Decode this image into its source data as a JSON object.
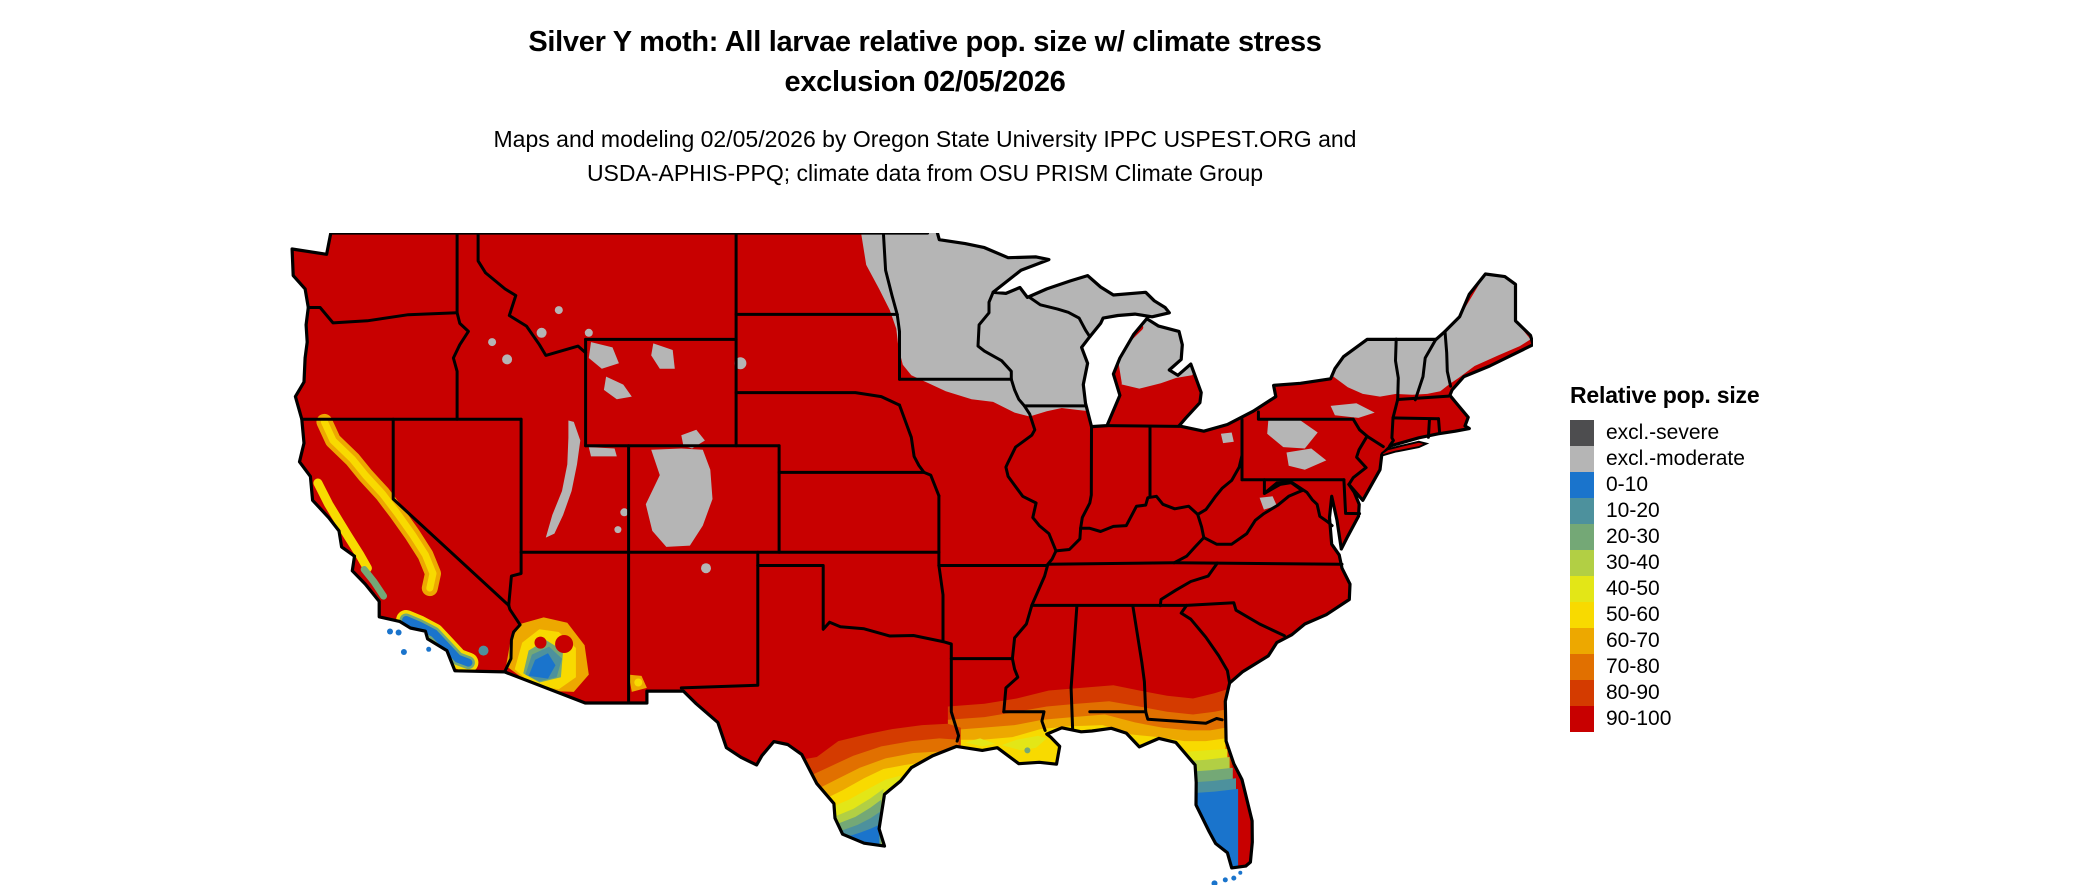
{
  "title": {
    "line1": "Silver Y moth: All larvae relative pop. size w/ climate stress",
    "line2": "exclusion 02/05/2026"
  },
  "subtitle": {
    "line1": "Maps and modeling 02/05/2026 by Oregon State University IPPC USPEST.ORG and",
    "line2": "USDA-APHIS-PPQ; climate data from OSU PRISM Climate Group"
  },
  "legend": {
    "title": "Relative pop. size",
    "items": [
      {
        "label": "excl.-severe",
        "color": "#4d4d4f"
      },
      {
        "label": "excl.-moderate",
        "color": "#b5b5b5"
      },
      {
        "label": "0-10",
        "color": "#1a74cc"
      },
      {
        "label": "10-20",
        "color": "#4d919d"
      },
      {
        "label": "20-30",
        "color": "#74a876"
      },
      {
        "label": "30-40",
        "color": "#b2cf44"
      },
      {
        "label": "40-50",
        "color": "#e3e617"
      },
      {
        "label": "50-60",
        "color": "#f8da00"
      },
      {
        "label": "60-70",
        "color": "#eda800"
      },
      {
        "label": "70-80",
        "color": "#e17000"
      },
      {
        "label": "80-90",
        "color": "#d43b00"
      },
      {
        "label": "90-100",
        "color": "#c80000"
      }
    ]
  },
  "map": {
    "border_color": "#000000",
    "background_color": "#ffffff"
  }
}
